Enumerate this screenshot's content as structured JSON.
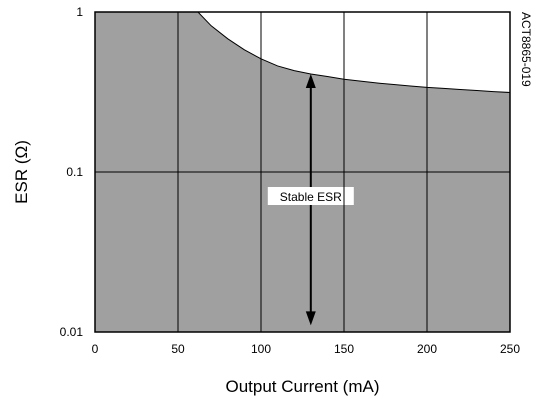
{
  "chart_data": {
    "type": "area",
    "xlabel": "Output Current (mA)",
    "ylabel": "ESR (Ω)",
    "xlim": [
      0,
      250
    ],
    "ylim": [
      0.01,
      1
    ],
    "y_scale": "log",
    "grid": true,
    "x_ticks": [
      {
        "value": 0,
        "label": "0"
      },
      {
        "value": 50,
        "label": "50"
      },
      {
        "value": 100,
        "label": "100"
      },
      {
        "value": 150,
        "label": "150"
      },
      {
        "value": 200,
        "label": "200"
      },
      {
        "value": 250,
        "label": "250"
      }
    ],
    "y_ticks": [
      {
        "value": 1,
        "label": "1"
      },
      {
        "value": 0.1,
        "label": "0.1"
      },
      {
        "value": 0.01,
        "label": "0.01"
      }
    ],
    "series": [
      {
        "x": [
          62,
          70,
          80,
          90,
          100,
          110,
          120,
          130,
          140,
          150,
          160,
          170,
          180,
          190,
          200,
          210,
          220,
          230,
          240,
          250
        ],
        "y": [
          1.0,
          0.82,
          0.68,
          0.58,
          0.51,
          0.46,
          0.43,
          0.41,
          0.395,
          0.38,
          0.37,
          0.36,
          0.352,
          0.345,
          0.338,
          0.333,
          0.328,
          0.323,
          0.318,
          0.314
        ]
      }
    ],
    "fill_color": "#a0a0a0",
    "annotations": [
      {
        "text": "Stable ESR",
        "x": 130,
        "y": 0.1,
        "arrow_from": 0.41,
        "arrow_to": 0.011
      }
    ],
    "figure_id": "ACT8865-019"
  }
}
